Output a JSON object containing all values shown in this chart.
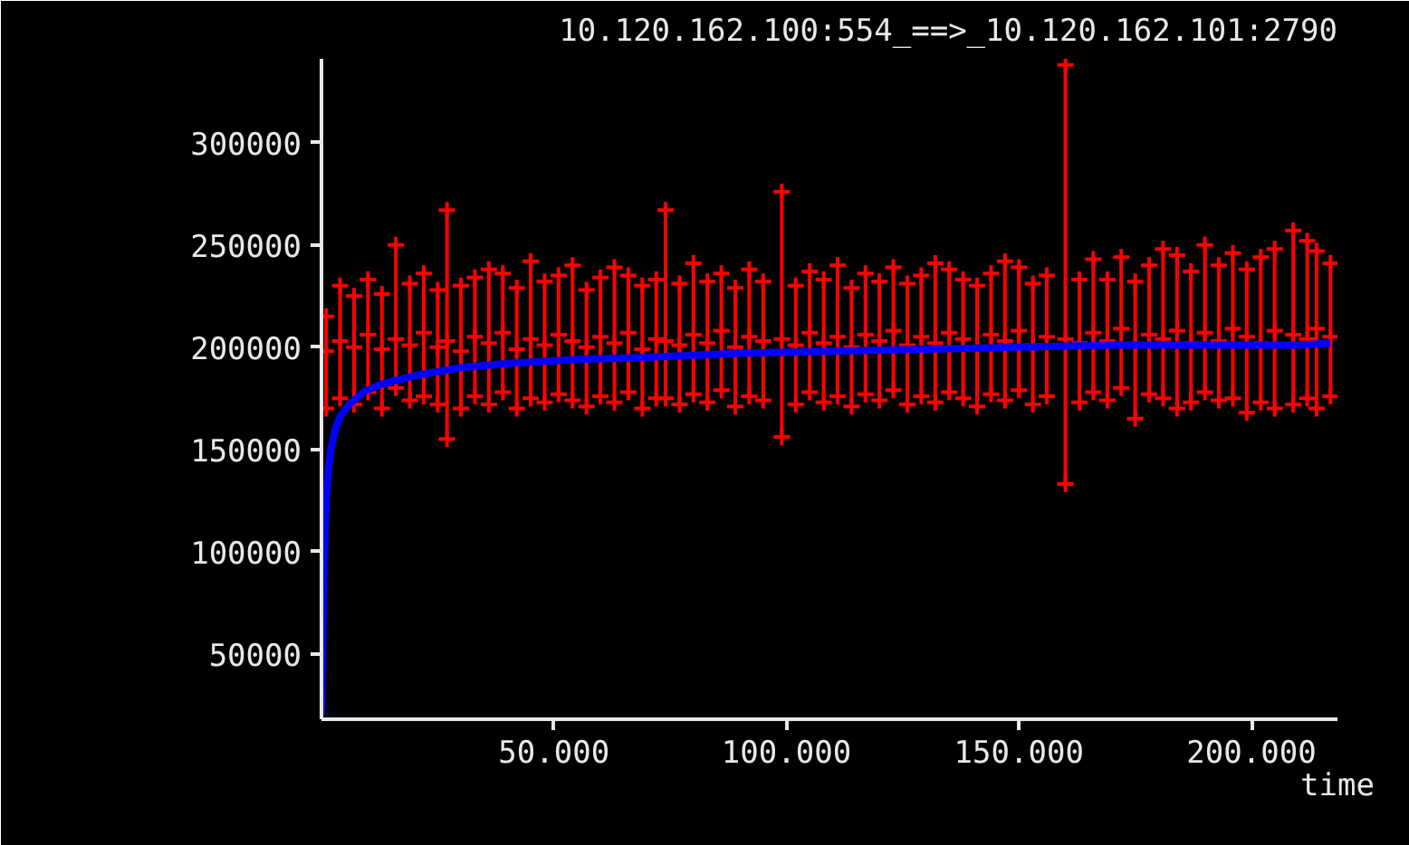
{
  "chart_data": {
    "type": "scatter",
    "title": "10.120.162.100:554_==>_10.120.162.101:2790",
    "xlabel": "time",
    "xlim": [
      0,
      218500
    ],
    "ylim": [
      18000,
      341000
    ],
    "xticks": [
      {
        "value": 50000,
        "label": "50.000"
      },
      {
        "value": 100000,
        "label": "100.000"
      },
      {
        "value": 150000,
        "label": "150.000"
      },
      {
        "value": 200000,
        "label": "200.000"
      }
    ],
    "yticks": [
      50000,
      100000,
      150000,
      200000,
      250000,
      300000
    ],
    "grid": false,
    "series": [
      {
        "marker": "cross",
        "color": "#ff0000",
        "x": [
          1000,
          4000,
          7000,
          10000,
          13000,
          16000,
          19000,
          22000,
          25000,
          27000,
          30000,
          33000,
          36000,
          39000,
          42000,
          45000,
          48000,
          51000,
          54000,
          57000,
          60000,
          63000,
          66000,
          69000,
          72000,
          74000,
          77000,
          80000,
          83000,
          86000,
          89000,
          92000,
          95000,
          99000,
          102000,
          105000,
          108000,
          111000,
          114000,
          117000,
          120000,
          123000,
          126000,
          129000,
          132000,
          135000,
          138000,
          141000,
          144000,
          147000,
          150000,
          153000,
          156000,
          160000,
          163000,
          166000,
          169000,
          172000,
          175000,
          178000,
          181000,
          184000,
          187000,
          190000,
          193000,
          196000,
          199000,
          202000,
          205000,
          209000,
          212000,
          214000,
          217000
        ],
        "values": [
          198000,
          203000,
          200000,
          206000,
          199000,
          204000,
          201000,
          207000,
          200000,
          203000,
          198000,
          205000,
          202000,
          207000,
          199000,
          204000,
          201000,
          206000,
          203000,
          200000,
          205000,
          202000,
          207000,
          199000,
          204000,
          203000,
          201000,
          206000,
          202000,
          208000,
          200000,
          205000,
          203000,
          204000,
          201000,
          207000,
          202000,
          205000,
          200000,
          206000,
          203000,
          208000,
          201000,
          205000,
          202000,
          207000,
          204000,
          200000,
          206000,
          203000,
          208000,
          201000,
          205000,
          204000,
          202000,
          207000,
          203000,
          209000,
          201000,
          206000,
          204000,
          208000,
          202000,
          207000,
          203000,
          209000,
          205000,
          202000,
          208000,
          206000,
          204000,
          209000,
          205000
        ],
        "errors": [
          [
            170000,
            215000
          ],
          [
            175000,
            230000
          ],
          [
            172000,
            225000
          ],
          [
            178000,
            233000
          ],
          [
            170000,
            226000
          ],
          [
            180000,
            250000
          ],
          [
            174000,
            231000
          ],
          [
            176000,
            236000
          ],
          [
            172000,
            228000
          ],
          [
            155000,
            267000
          ],
          [
            170000,
            230000
          ],
          [
            176000,
            234000
          ],
          [
            172000,
            238000
          ],
          [
            178000,
            236000
          ],
          [
            170000,
            229000
          ],
          [
            175000,
            242000
          ],
          [
            173000,
            232000
          ],
          [
            177000,
            235000
          ],
          [
            174000,
            240000
          ],
          [
            171000,
            228000
          ],
          [
            176000,
            234000
          ],
          [
            173000,
            239000
          ],
          [
            178000,
            235000
          ],
          [
            170000,
            230000
          ],
          [
            175000,
            233000
          ],
          [
            175000,
            267000
          ],
          [
            172000,
            231000
          ],
          [
            177000,
            241000
          ],
          [
            173000,
            232000
          ],
          [
            179000,
            236000
          ],
          [
            171000,
            229000
          ],
          [
            176000,
            238000
          ],
          [
            174000,
            232000
          ],
          [
            156000,
            276000
          ],
          [
            172000,
            230000
          ],
          [
            178000,
            237000
          ],
          [
            173000,
            233000
          ],
          [
            176000,
            240000
          ],
          [
            171000,
            229000
          ],
          [
            177000,
            236000
          ],
          [
            174000,
            232000
          ],
          [
            179000,
            239000
          ],
          [
            172000,
            231000
          ],
          [
            176000,
            235000
          ],
          [
            173000,
            241000
          ],
          [
            178000,
            238000
          ],
          [
            175000,
            233000
          ],
          [
            171000,
            230000
          ],
          [
            177000,
            236000
          ],
          [
            174000,
            242000
          ],
          [
            179000,
            239000
          ],
          [
            172000,
            231000
          ],
          [
            176000,
            235000
          ],
          [
            133000,
            338000
          ],
          [
            173000,
            233000
          ],
          [
            178000,
            243000
          ],
          [
            174000,
            233000
          ],
          [
            180000,
            244000
          ],
          [
            165000,
            232000
          ],
          [
            177000,
            240000
          ],
          [
            175000,
            248000
          ],
          [
            170000,
            245000
          ],
          [
            173000,
            237000
          ],
          [
            178000,
            250000
          ],
          [
            174000,
            240000
          ],
          [
            175000,
            246000
          ],
          [
            168000,
            238000
          ],
          [
            173000,
            244000
          ],
          [
            170000,
            248000
          ],
          [
            172000,
            257000
          ],
          [
            175000,
            252000
          ],
          [
            170000,
            247000
          ],
          [
            176000,
            241000
          ]
        ]
      },
      {
        "type": "line",
        "color": "#0000ff",
        "x": [
          0,
          300,
          600,
          1000,
          1500,
          2000,
          3000,
          4000,
          6000,
          9000,
          13000,
          20000,
          30000,
          40000,
          55000,
          70000,
          90000,
          110000,
          130000,
          150000,
          170000,
          190000,
          210000,
          217000
        ],
        "values": [
          20000,
          60000,
          100000,
          125000,
          140000,
          150000,
          160000,
          166000,
          172000,
          178000,
          182000,
          186000,
          190000,
          192000,
          194000,
          195000,
          197000,
          198000,
          199000,
          200000,
          201000,
          201000,
          201000,
          202000
        ]
      }
    ]
  }
}
